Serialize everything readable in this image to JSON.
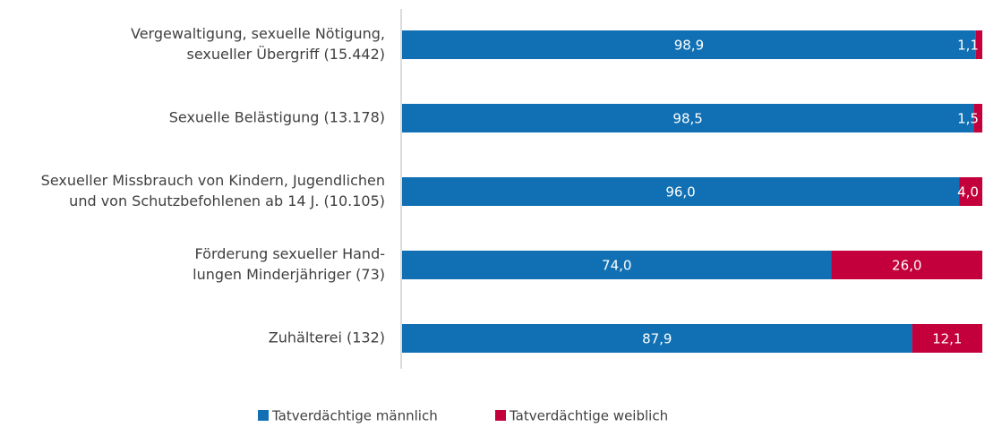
{
  "chart_data": {
    "type": "bar",
    "orientation": "horizontal",
    "stacked": true,
    "categories": [
      [
        "Vergewaltigung, sexuelle Nötigung,",
        "sexueller Übergriff (15.442)"
      ],
      [
        "Sexuelle Belästigung (13.178)"
      ],
      [
        "Sexueller Missbrauch von Kindern, Jugendlichen",
        "und von Schutzbefohlenen ab 14 J. (10.105)"
      ],
      [
        "Förderung sexueller Hand-",
        "lungen Minderjähriger (73)"
      ],
      [
        "Zuhälterei (132)"
      ]
    ],
    "series": [
      {
        "name": "Tatverdächtige männlich",
        "color": "#1170b3",
        "values": [
          98.9,
          98.5,
          96.0,
          74.0,
          87.9
        ],
        "value_labels": [
          "98,9",
          "98,5",
          "96,0",
          "74,0",
          "87,9"
        ]
      },
      {
        "name": "Tatverdächtige weiblich",
        "color": "#c3003c",
        "values": [
          1.1,
          1.5,
          4.0,
          26.0,
          12.1
        ],
        "value_labels": [
          "1,1",
          "1,5",
          "4,0",
          "26,0",
          "12,1"
        ]
      }
    ],
    "xlim": [
      0,
      100
    ],
    "legend": "bottom"
  }
}
